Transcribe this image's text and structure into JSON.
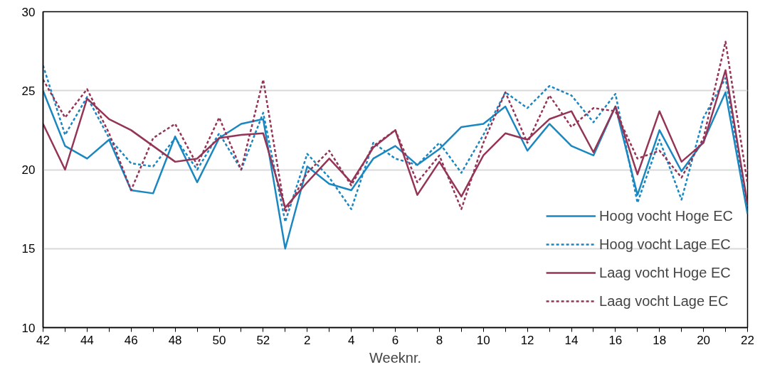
{
  "chart_data": {
    "type": "line",
    "xlabel": "Weeknr.",
    "categories": [
      "42",
      null,
      "44",
      null,
      "46",
      null,
      "48",
      null,
      "50",
      null,
      "52",
      null,
      "2",
      null,
      "4",
      null,
      "6",
      null,
      "8",
      null,
      "10",
      null,
      "12",
      null,
      "14",
      null,
      "16",
      null,
      "18",
      null,
      "20",
      null,
      "22"
    ],
    "ylim": [
      10,
      30
    ],
    "yticks": [
      10,
      15,
      20,
      25,
      30
    ],
    "grid": "y",
    "legend": "bottom right",
    "series": [
      {
        "name": "Hoog vocht Hoge EC",
        "color": "#1a87c0",
        "line_style": "solid",
        "values": [
          25.0,
          21.5,
          20.7,
          21.9,
          18.7,
          18.5,
          22.1,
          19.2,
          22.0,
          22.9,
          23.2,
          15.0,
          20.2,
          19.1,
          18.7,
          20.7,
          21.5,
          20.3,
          21.3,
          22.7,
          22.9,
          24.0,
          21.2,
          22.9,
          21.5,
          20.9,
          24.0,
          18.4,
          22.5,
          19.9,
          21.8,
          24.9,
          17.2
        ]
      },
      {
        "name": "Hoog vocht Lage EC",
        "color": "#1a87c0",
        "line_style": "dashed",
        "values": [
          26.6,
          22.2,
          24.6,
          22.0,
          20.4,
          20.2,
          22.0,
          20.0,
          22.3,
          20.0,
          23.6,
          16.7,
          21.0,
          19.5,
          17.5,
          21.7,
          20.7,
          20.3,
          21.7,
          19.8,
          22.2,
          24.9,
          23.9,
          25.3,
          24.7,
          23.0,
          24.8,
          17.9,
          21.9,
          18.1,
          23.3,
          25.8,
          17.5
        ]
      },
      {
        "name": "Laag vocht Hoge EC",
        "color": "#943456",
        "line_style": "solid",
        "values": [
          22.9,
          20.0,
          24.5,
          23.2,
          22.5,
          21.5,
          20.5,
          20.7,
          22.0,
          22.2,
          22.3,
          17.6,
          19.2,
          20.7,
          19.2,
          21.4,
          22.5,
          18.4,
          20.5,
          18.3,
          20.9,
          22.3,
          21.9,
          23.2,
          23.7,
          21.1,
          24.0,
          19.7,
          23.7,
          20.5,
          21.7,
          26.3,
          17.8
        ]
      },
      {
        "name": "Laag vocht Lage EC",
        "color": "#943456",
        "line_style": "dashed",
        "values": [
          25.7,
          23.3,
          25.1,
          22.3,
          18.7,
          22.0,
          22.9,
          20.3,
          23.3,
          20.0,
          25.7,
          17.3,
          19.8,
          21.2,
          19.0,
          21.5,
          22.5,
          19.2,
          20.9,
          17.5,
          21.7,
          24.9,
          21.7,
          24.7,
          22.7,
          23.9,
          23.7,
          20.7,
          21.2,
          19.5,
          22.0,
          28.1,
          19.1
        ]
      }
    ]
  }
}
